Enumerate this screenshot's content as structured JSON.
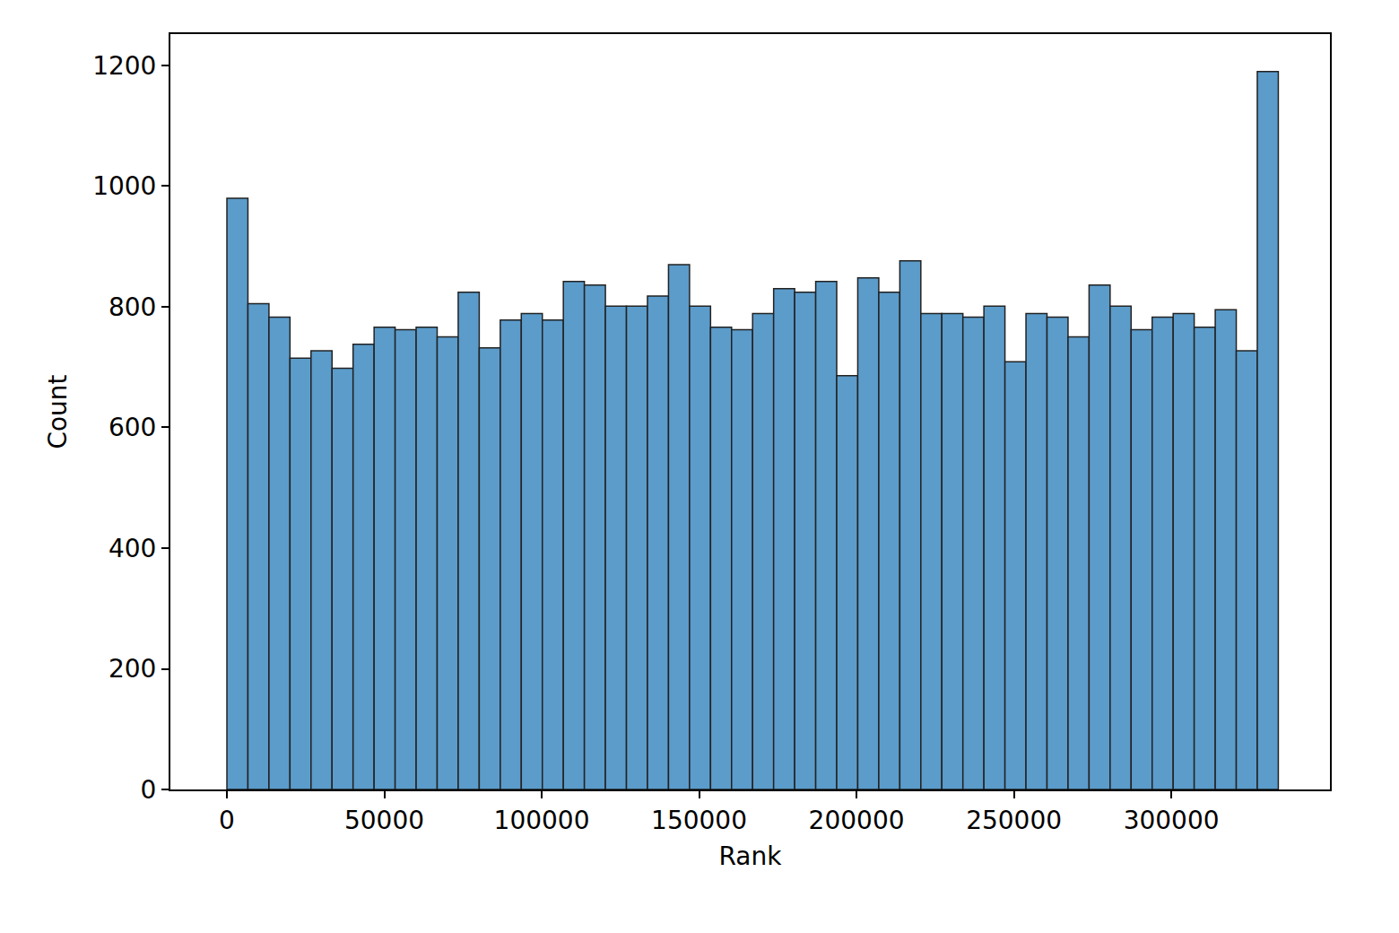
{
  "chart_data": {
    "type": "histogram",
    "x_label": "Rank",
    "y_label": "Count",
    "bins": [
      0,
      6680,
      13360,
      20040,
      26720,
      33400,
      40080,
      46760,
      53440,
      60120,
      66800,
      73480,
      80160,
      86840,
      93520,
      100200,
      106880,
      113560,
      120240,
      126920,
      133600,
      140280,
      146960,
      153640,
      160320,
      167000,
      173680,
      180360,
      187040,
      193720,
      200400,
      207080,
      213760,
      220440,
      227120,
      233800,
      240480,
      247160,
      253840,
      260520,
      267200,
      273880,
      280560,
      287240,
      293920,
      300600,
      307280,
      313960,
      320640,
      327320,
      334000
    ],
    "values": [
      980,
      805,
      783,
      715,
      727,
      698,
      738,
      766,
      762,
      766,
      750,
      824,
      732,
      778,
      789,
      778,
      842,
      836,
      801,
      801,
      818,
      870,
      801,
      766,
      762,
      789,
      830,
      824,
      842,
      686,
      848,
      824,
      876,
      789,
      789,
      783,
      801,
      709,
      789,
      783,
      750,
      836,
      801,
      762,
      783,
      789,
      766,
      795,
      727,
      1190
    ],
    "color": "#5b9ccb",
    "xlim": [
      -17950,
      350400
    ],
    "xticks": [
      0,
      50000,
      100000,
      150000,
      200000,
      250000,
      300000
    ],
    "ylim": [
      0,
      1252
    ],
    "yticks": [
      0,
      200,
      400,
      600,
      800,
      1000,
      1200
    ],
    "grid": false
  }
}
